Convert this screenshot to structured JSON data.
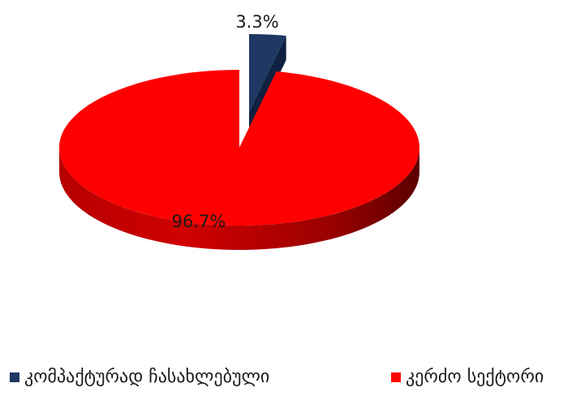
{
  "chart_data": {
    "type": "pie",
    "title": "",
    "categories": [
      "კომპაქტურად ჩასახლებული",
      "კერძო სექტორი"
    ],
    "values": [
      3.3,
      96.7
    ],
    "value_labels": [
      "3.3%",
      "96.7%"
    ],
    "colors": [
      "#1f3864",
      "#ff0000"
    ],
    "exploded_slice": 0,
    "legend_position": "bottom",
    "style": "3d"
  }
}
